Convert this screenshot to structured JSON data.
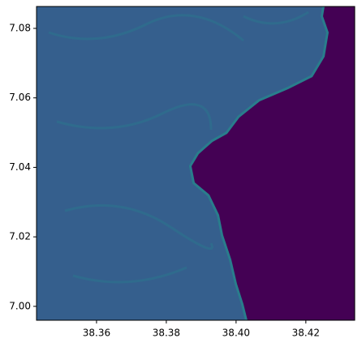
{
  "chart_data": {
    "type": "image",
    "xlim": [
      38.3428,
      38.434
    ],
    "ylim": [
      6.996,
      7.0863
    ],
    "xticks": [
      38.36,
      38.38,
      {
        "value": 38.4,
        "label": "38.40"
      },
      38.42
    ],
    "yticks": [
      {
        "value": 7,
        "label": "7.00"
      },
      7.02,
      7.04,
      7.06,
      7.08
    ],
    "land_color": "#355f8d",
    "water_color": "#440154"
  }
}
